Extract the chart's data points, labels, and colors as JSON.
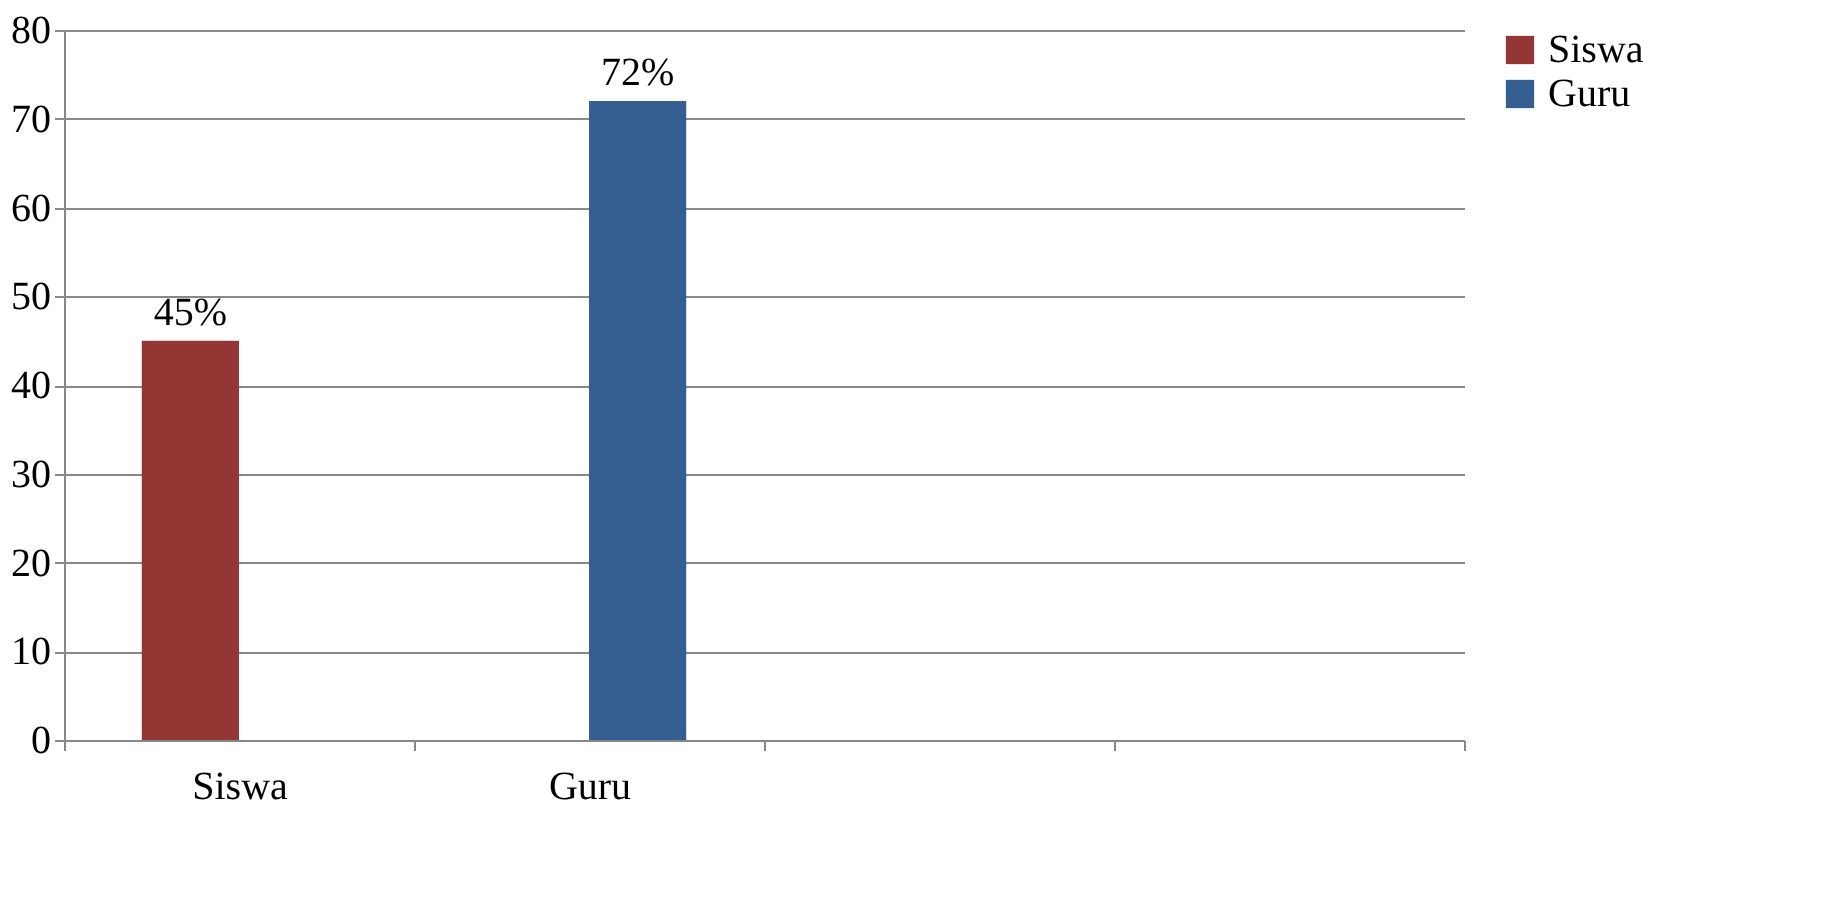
{
  "chart_data": {
    "type": "bar",
    "categories": [
      "Siswa",
      "Guru",
      null,
      null
    ],
    "series": [
      {
        "name": "Siswa",
        "color": "#943634",
        "values": [
          45,
          null,
          null,
          null
        ],
        "value_labels": [
          "45%",
          null,
          null,
          null
        ]
      },
      {
        "name": "Guru",
        "color": "#365f91",
        "values": [
          null,
          72,
          null,
          null
        ],
        "value_labels": [
          null,
          "72%",
          null,
          null
        ]
      }
    ],
    "ylim": [
      0,
      80
    ],
    "yticks": [
      0,
      10,
      20,
      30,
      40,
      50,
      60,
      70,
      80
    ],
    "grid": "y",
    "legend": "right"
  }
}
